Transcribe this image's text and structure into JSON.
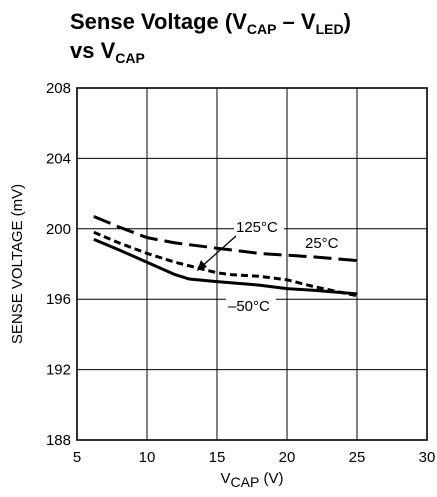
{
  "chart_data": {
    "type": "line",
    "title": {
      "line1_prefix": "Sense Voltage (V",
      "line1_sub1": "CAP",
      "line1_mid": " – V",
      "line1_sub2": "LED",
      "line1_suffix": ")",
      "line2_prefix": "vs V",
      "line2_sub": "CAP"
    },
    "xlabel": {
      "prefix": "V",
      "sub": "CAP",
      "suffix": " (V)"
    },
    "ylabel": "SENSE VOLTAGE (mV)",
    "xlim": [
      5,
      30
    ],
    "ylim": [
      188,
      208
    ],
    "xticks": [
      5,
      10,
      15,
      20,
      25,
      30
    ],
    "yticks": [
      188,
      192,
      196,
      200,
      204,
      208
    ],
    "grid": true,
    "series": [
      {
        "name": "25°C",
        "style": "long-dash",
        "x": [
          6.2,
          8,
          10,
          12,
          15,
          18,
          20,
          22,
          25
        ],
        "y": [
          200.7,
          200.1,
          199.5,
          199.2,
          198.9,
          198.6,
          198.5,
          198.4,
          198.2
        ]
      },
      {
        "name": "125°C",
        "style": "short-dash",
        "x": [
          6.2,
          8,
          10,
          12,
          14,
          15,
          16,
          18,
          20,
          22,
          25
        ],
        "y": [
          199.8,
          199.2,
          198.6,
          198.1,
          197.7,
          197.5,
          197.4,
          197.3,
          197.1,
          196.7,
          196.2
        ]
      },
      {
        "name": "–50°C",
        "style": "solid",
        "x": [
          6.2,
          8,
          10,
          12,
          13,
          15,
          18,
          20,
          22,
          25
        ],
        "y": [
          199.4,
          198.8,
          198.1,
          197.4,
          197.15,
          197.0,
          196.8,
          196.6,
          196.5,
          196.3
        ]
      }
    ],
    "annotations": [
      {
        "text": "125°C",
        "series": "125°C",
        "arrow": true
      },
      {
        "text": "25°C",
        "series": "25°C",
        "arrow": false
      },
      {
        "text": "–50°C",
        "series": "–50°C",
        "arrow": false
      }
    ]
  }
}
